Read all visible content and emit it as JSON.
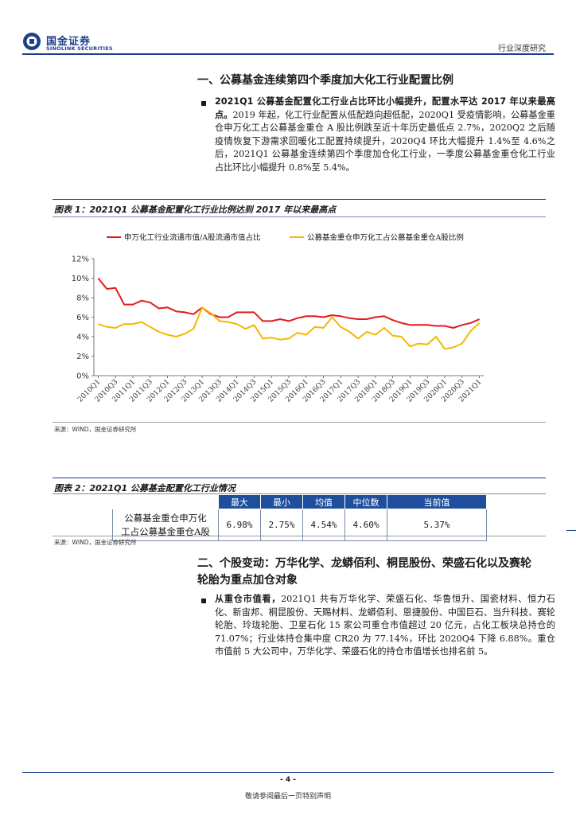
{
  "header": {
    "logo_cn": "国金证券",
    "logo_en": "SINOLINK SECURITIES",
    "report_type": "行业深度研究"
  },
  "section1": {
    "title": "一、公募基金连续第四个季度加大化工行业配置比例",
    "bullet_bold": "2021Q1 公募基金配置化工行业占比环比小幅提升，配置水平达 2017 年以来最高点。",
    "bullet_text": "2019 年起，化工行业配置从低配趋向超低配，2020Q1 受疫情影响，公募基金重仓申万化工占公募基金重仓 A 股比例跌至近十年历史最低点 2.7%，2020Q2 之后随疫情恢复下游需求回暖化工配置持续提升，2020Q4 环比大幅提升 1.4%至 4.6%之后，2021Q1 公募基金连续第四个季度加仓化工行业，一季度公募基金重仓化工行业占比环比小幅提升 0.8%至 5.4%。"
  },
  "figure1": {
    "title": "图表 1：2021Q1 公募基金配置化工行业比例达到 2017 年以来最高点",
    "source": "来源：WIND，国金证券研究所"
  },
  "chart_data": {
    "type": "line",
    "title": "",
    "xlabel": "",
    "ylabel": "",
    "ylim": [
      0,
      12
    ],
    "yticks": [
      "0%",
      "2%",
      "4%",
      "6%",
      "8%",
      "10%",
      "12%"
    ],
    "x": [
      "2010Q1",
      "2010Q2",
      "2010Q3",
      "2010Q4",
      "2011Q1",
      "2011Q2",
      "2011Q3",
      "2011Q4",
      "2012Q1",
      "2012Q2",
      "2012Q3",
      "2012Q4",
      "2013Q1",
      "2013Q2",
      "2013Q3",
      "2013Q4",
      "2014Q1",
      "2014Q2",
      "2014Q3",
      "2014Q4",
      "2015Q1",
      "2015Q2",
      "2015Q3",
      "2015Q4",
      "2016Q1",
      "2016Q2",
      "2016Q3",
      "2016Q4",
      "2017Q1",
      "2017Q2",
      "2017Q3",
      "2017Q4",
      "2018Q1",
      "2018Q2",
      "2018Q3",
      "2018Q4",
      "2019Q1",
      "2019Q2",
      "2019Q3",
      "2019Q4",
      "2020Q1",
      "2020Q2",
      "2020Q3",
      "2020Q4",
      "2021Q1"
    ],
    "xtick_labels": [
      "2010Q1",
      "2010Q3",
      "2011Q1",
      "2011Q3",
      "2012Q1",
      "2012Q3",
      "2013Q1",
      "2013Q3",
      "2014Q1",
      "2014Q3",
      "2015Q1",
      "2015Q3",
      "2016Q1",
      "2016Q3",
      "2017Q1",
      "2017Q3",
      "2018Q1",
      "2018Q3",
      "2019Q1",
      "2019Q3",
      "2020Q1",
      "2020Q3",
      "2021Q1"
    ],
    "legend_position": "top",
    "grid": false,
    "series": [
      {
        "name": "申万化工行业流通市值/A股流通市值占比",
        "color": "#e31a1c",
        "values": [
          10.0,
          8.9,
          9.0,
          7.3,
          7.3,
          7.7,
          7.5,
          6.9,
          7.0,
          6.6,
          6.5,
          6.3,
          7.0,
          6.3,
          6.0,
          6.0,
          6.5,
          6.5,
          6.5,
          5.6,
          5.6,
          5.8,
          5.6,
          5.9,
          6.1,
          6.1,
          6.0,
          6.2,
          6.1,
          5.9,
          5.8,
          5.8,
          6.0,
          6.1,
          5.7,
          5.4,
          5.2,
          5.2,
          5.2,
          5.1,
          5.1,
          4.9,
          5.2,
          5.4,
          5.8
        ]
      },
      {
        "name": "公募基金重仓申万化工占公募基金重仓A股比例",
        "color": "#f5b800",
        "values": [
          5.3,
          5.0,
          4.9,
          5.3,
          5.3,
          5.5,
          5.0,
          4.5,
          4.2,
          4.0,
          4.3,
          4.8,
          7.0,
          6.4,
          5.6,
          5.5,
          5.3,
          4.8,
          5.2,
          3.8,
          3.9,
          3.7,
          3.8,
          4.4,
          4.2,
          5.0,
          4.9,
          6.0,
          5.0,
          4.5,
          3.8,
          4.5,
          4.2,
          4.9,
          4.1,
          4.0,
          3.0,
          3.3,
          3.2,
          4.0,
          2.75,
          2.9,
          3.3,
          4.6,
          5.4
        ]
      }
    ]
  },
  "figure2": {
    "title": "图表 2：2021Q1 公募基金配置化工行业情况",
    "source": "来源：WIND，国金证券研究所",
    "headers": [
      "",
      "最大",
      "最小",
      "均值",
      "中位数",
      "当前值"
    ],
    "row_label_1": "公募基金重仓申万化",
    "row_label_2": "工占公募基金重仓A股",
    "values": [
      "6.98%",
      "2.75%",
      "4.54%",
      "4.60%",
      "5.37%"
    ]
  },
  "section2": {
    "title_line1": "二、个股变动：万华化学、龙蟒佰利、桐昆股份、荣盛石化以及赛轮",
    "title_line2": "轮胎为重点加仓对象",
    "bullet_bold": "从重仓市值看，",
    "bullet_text": "2021Q1 共有万华化学、荣盛石化、华鲁恒升、国瓷材料、恒力石化、新宙邦、桐昆股份、天赐材料、龙蟒佰利、恩捷股份、中国巨石、当升科技、赛轮轮胎、玲珑轮胎、卫星石化 15 家公司重仓市值超过 20 亿元，占化工板块总持仓的 71.07%；行业体持仓集中度 CR20 为 77.14%，环比 2020Q4 下降 6.88%。重仓市值前 5 大公司中，万华化学、荣盛石化的持仓市值增长也排名前 5。"
  },
  "footer": {
    "page_num": "- 4 -",
    "disclaimer": "敬请参阅最后一页特别声明"
  }
}
